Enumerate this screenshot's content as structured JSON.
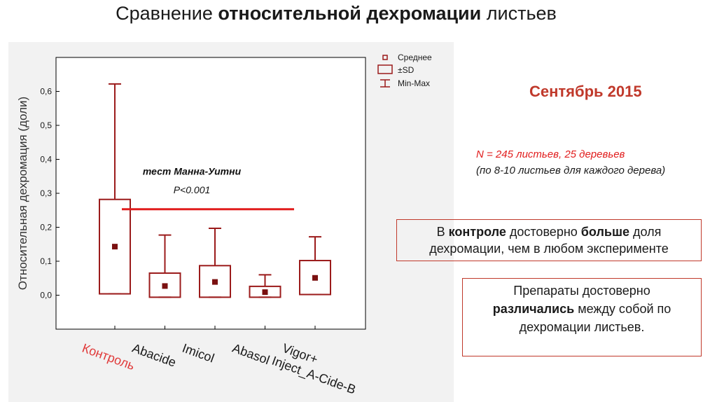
{
  "slide": {
    "title_part1": "Сравнение ",
    "title_bold": "относительной дехромации",
    "title_part3": " листьев",
    "month": "Сентябрь 2015",
    "n_line": "N = 245 листьев,   25 деревьев",
    "n_sub": "(по 8-10 листьев для каждого дерева)",
    "box1": {
      "p1": "В ",
      "b1": "контроле",
      "p2": " достоверно ",
      "b2": "больше",
      "p3": " доля",
      "line2": "дехромации, чем в любом эксперименте"
    },
    "box2": {
      "line1": "Препараты достоверно",
      "b1": "различались",
      "p2": " между собой по",
      "line3": "дехромации листьев."
    }
  },
  "chart_data": {
    "type": "box",
    "ylabel": "Относительная дехромация (доли)",
    "ylim": [
      -0.1,
      0.7
    ],
    "yticks": [
      0.0,
      0.1,
      0.2,
      0.3,
      0.4,
      0.5,
      0.6
    ],
    "ytick_labels": [
      "0,0",
      "0,1",
      "0,2",
      "0,3",
      "0,4",
      "0,5",
      "0,6"
    ],
    "categories": [
      "Контроль",
      "Abacide",
      "Imicol",
      "Abasol",
      "Vigor+\nInject_A-Cide-B"
    ],
    "category_label_colors": [
      "#e03a3a",
      "#1a1a1a",
      "#1a1a1a",
      "#1a1a1a",
      "#1a1a1a"
    ],
    "mean": [
      0.143,
      0.027,
      0.039,
      0.009,
      0.051
    ],
    "sd_low": [
      0.004,
      -0.006,
      -0.006,
      -0.006,
      0.002
    ],
    "sd_high": [
      0.282,
      0.065,
      0.087,
      0.026,
      0.102
    ],
    "min": [
      0.004,
      -0.006,
      -0.006,
      -0.006,
      0.002
    ],
    "max": [
      0.622,
      0.177,
      0.197,
      0.06,
      0.172
    ],
    "legend": [
      "Среднее",
      "±SD",
      "Min-Max"
    ],
    "legend_position": "top-right",
    "annotation": {
      "test_label": "тест Манна-Уитни",
      "p_label": "P<0.001",
      "line_y": 0.253,
      "line_from": "Контроль",
      "line_to": "Vigor+\nInject_A-Cide-B",
      "line_color": "#e11d1d"
    },
    "box_color": "#9b1b1b"
  }
}
